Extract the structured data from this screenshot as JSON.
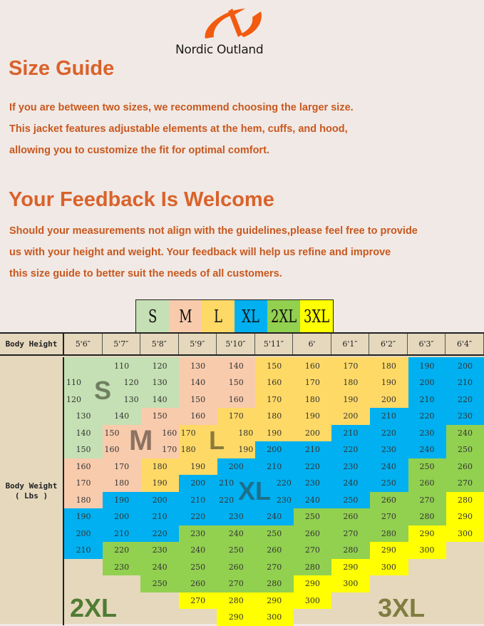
{
  "brand": {
    "name": "Nordic Outland",
    "color": "#f25a0f"
  },
  "size_guide": {
    "title": "Size Guide",
    "lines": [
      "If you are between two sizes, we recommend choosing the larger size.",
      "This jacket features adjustable elements at the hem, cuffs, and hood,",
      "allowing you to customize the fit for optimal comfort."
    ]
  },
  "feedback": {
    "title": "Your Feedback Is Welcome",
    "lines": [
      "Should your measurements not align with the guidelines,please feel free to provide",
      "us with your height and weight. Your feedback will help us refine and improve",
      "this size guide to better suit the needs of all customers."
    ]
  },
  "sizes": [
    {
      "label": "S",
      "color": "#c5e0b4"
    },
    {
      "label": "M",
      "color": "#f8cbad"
    },
    {
      "label": "L",
      "color": "#ffd966"
    },
    {
      "label": "XL",
      "color": "#00b0f0"
    },
    {
      "label": "2XL",
      "color": "#92d050"
    },
    {
      "label": "3XL",
      "color": "#ffff00"
    }
  ],
  "table": {
    "height_label": "Body Height",
    "weight_label": "Body Weight",
    "weight_unit": "( Lbs )",
    "heights": [
      "5'6″",
      "5'7″",
      "5'8″",
      "5'9″",
      "5'10″",
      "5'11″",
      "6'",
      "6'1″",
      "6'2″",
      "6'3″",
      "6'4″"
    ],
    "rows": [
      [
        [
          "",
          "S"
        ],
        [
          "110",
          "S"
        ],
        [
          "120",
          "S"
        ],
        [
          "130",
          "M"
        ],
        [
          "140",
          "M"
        ],
        [
          "150",
          "L"
        ],
        [
          "160",
          "L"
        ],
        [
          "170",
          "L"
        ],
        [
          "180",
          "L"
        ],
        [
          "190",
          "XL"
        ],
        [
          "200",
          "XL"
        ]
      ],
      [
        [
          "110",
          "S"
        ],
        [
          "120",
          "S"
        ],
        [
          "130",
          "S"
        ],
        [
          "140",
          "M"
        ],
        [
          "150",
          "M"
        ],
        [
          "160",
          "L"
        ],
        [
          "170",
          "L"
        ],
        [
          "180",
          "L"
        ],
        [
          "190",
          "L"
        ],
        [
          "200",
          "XL"
        ],
        [
          "210",
          "XL"
        ]
      ],
      [
        [
          "120",
          "S"
        ],
        [
          "130",
          "S"
        ],
        [
          "140",
          "S"
        ],
        [
          "150",
          "M"
        ],
        [
          "160",
          "M"
        ],
        [
          "170",
          "L"
        ],
        [
          "180",
          "L"
        ],
        [
          "190",
          "L"
        ],
        [
          "200",
          "L"
        ],
        [
          "210",
          "XL"
        ],
        [
          "220",
          "XL"
        ]
      ],
      [
        [
          "130",
          "S"
        ],
        [
          "140",
          "S"
        ],
        [
          "150",
          "M"
        ],
        [
          "160",
          "M"
        ],
        [
          "170",
          "L"
        ],
        [
          "180",
          "L"
        ],
        [
          "190",
          "L"
        ],
        [
          "200",
          "L"
        ],
        [
          "210",
          "XL"
        ],
        [
          "220",
          "XL"
        ],
        [
          "230",
          "XL"
        ]
      ],
      [
        [
          "140",
          "S"
        ],
        [
          "150",
          "M"
        ],
        [
          "160",
          "M"
        ],
        [
          "170",
          "L"
        ],
        [
          "180",
          "L"
        ],
        [
          "190",
          "L"
        ],
        [
          "200",
          "L"
        ],
        [
          "210",
          "XL"
        ],
        [
          "220",
          "XL"
        ],
        [
          "230",
          "XL"
        ],
        [
          "240",
          "2XL"
        ]
      ],
      [
        [
          "150",
          "S"
        ],
        [
          "160",
          "M"
        ],
        [
          "170",
          "M"
        ],
        [
          "180",
          "L"
        ],
        [
          "190",
          "L"
        ],
        [
          "200",
          "XL"
        ],
        [
          "210",
          "XL"
        ],
        [
          "220",
          "XL"
        ],
        [
          "230",
          "XL"
        ],
        [
          "240",
          "XL"
        ],
        [
          "250",
          "2XL"
        ]
      ],
      [
        [
          "160",
          "M"
        ],
        [
          "170",
          "M"
        ],
        [
          "180",
          "L"
        ],
        [
          "190",
          "L"
        ],
        [
          "200",
          "XL"
        ],
        [
          "210",
          "XL"
        ],
        [
          "220",
          "XL"
        ],
        [
          "230",
          "XL"
        ],
        [
          "240",
          "XL"
        ],
        [
          "250",
          "2XL"
        ],
        [
          "260",
          "2XL"
        ]
      ],
      [
        [
          "170",
          "M"
        ],
        [
          "180",
          "M"
        ],
        [
          "190",
          "L"
        ],
        [
          "200",
          "XL"
        ],
        [
          "210",
          "XL"
        ],
        [
          "220",
          "XL"
        ],
        [
          "230",
          "XL"
        ],
        [
          "240",
          "XL"
        ],
        [
          "250",
          "XL"
        ],
        [
          "260",
          "2XL"
        ],
        [
          "270",
          "2XL"
        ]
      ],
      [
        [
          "180",
          "M"
        ],
        [
          "190",
          "XL"
        ],
        [
          "200",
          "XL"
        ],
        [
          "210",
          "XL"
        ],
        [
          "220",
          "XL"
        ],
        [
          "230",
          "XL"
        ],
        [
          "240",
          "XL"
        ],
        [
          "250",
          "XL"
        ],
        [
          "260",
          "2XL"
        ],
        [
          "270",
          "2XL"
        ],
        [
          "280",
          "3XL"
        ]
      ],
      [
        [
          "190",
          "XL"
        ],
        [
          "200",
          "XL"
        ],
        [
          "210",
          "XL"
        ],
        [
          "220",
          "XL"
        ],
        [
          "230",
          "XL"
        ],
        [
          "240",
          "XL"
        ],
        [
          "250",
          "2XL"
        ],
        [
          "260",
          "2XL"
        ],
        [
          "270",
          "2XL"
        ],
        [
          "280",
          "2XL"
        ],
        [
          "290",
          "3XL"
        ]
      ],
      [
        [
          "200",
          "XL"
        ],
        [
          "210",
          "XL"
        ],
        [
          "220",
          "XL"
        ],
        [
          "230",
          "2XL"
        ],
        [
          "240",
          "2XL"
        ],
        [
          "250",
          "2XL"
        ],
        [
          "260",
          "2XL"
        ],
        [
          "270",
          "2XL"
        ],
        [
          "280",
          "2XL"
        ],
        [
          "290",
          "3XL"
        ],
        [
          "300",
          "3XL"
        ]
      ],
      [
        [
          "210",
          "XL"
        ],
        [
          "220",
          "2XL"
        ],
        [
          "230",
          "2XL"
        ],
        [
          "240",
          "2XL"
        ],
        [
          "250",
          "2XL"
        ],
        [
          "260",
          "2XL"
        ],
        [
          "270",
          "2XL"
        ],
        [
          "280",
          "2XL"
        ],
        [
          "290",
          "3XL"
        ],
        [
          "300",
          "3XL"
        ],
        null
      ],
      [
        null,
        [
          "230",
          "2XL"
        ],
        [
          "240",
          "2XL"
        ],
        [
          "250",
          "2XL"
        ],
        [
          "260",
          "2XL"
        ],
        [
          "270",
          "2XL"
        ],
        [
          "280",
          "2XL"
        ],
        [
          "290",
          "3XL"
        ],
        [
          "300",
          "3XL"
        ],
        null,
        null
      ],
      [
        null,
        null,
        [
          "250",
          "2XL"
        ],
        [
          "260",
          "2XL"
        ],
        [
          "270",
          "2XL"
        ],
        [
          "280",
          "2XL"
        ],
        [
          "290",
          "3XL"
        ],
        [
          "300",
          "3XL"
        ],
        null,
        null,
        null
      ],
      [
        null,
        null,
        null,
        [
          "270",
          "3XL"
        ],
        [
          "280",
          "3XL"
        ],
        [
          "290",
          "3XL"
        ],
        [
          "300",
          "3XL"
        ],
        null,
        null,
        null,
        null
      ],
      [
        null,
        null,
        null,
        null,
        [
          "290",
          "3XL"
        ],
        [
          "300",
          "3XL"
        ],
        null,
        null,
        null,
        null,
        null
      ]
    ]
  }
}
